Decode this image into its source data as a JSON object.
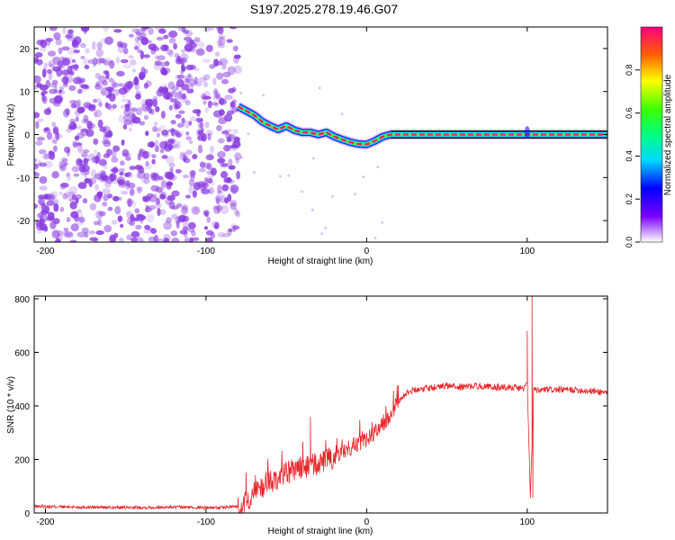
{
  "figure_title": "S197.2025.278.19.46.G07",
  "colors": {
    "spectrum_line": "#e8262b",
    "snr_line": "#e8262b",
    "blob": "#8a3ce0"
  },
  "chart_data": [
    {
      "type": "heatmap",
      "title": "S197.2025.278.19.46.G07",
      "xlabel": "Height of straight line (km)",
      "ylabel": "Frequency (Hz)",
      "xlim": [
        -207,
        150
      ],
      "ylim": [
        -25,
        25
      ],
      "xticks": [
        -200,
        -100,
        0,
        100
      ],
      "yticks": [
        20,
        10,
        0,
        -10,
        -20
      ],
      "noise_region_x": [
        -207,
        -80
      ],
      "signal_track": {
        "x": [
          -80,
          -75,
          -70,
          -65,
          -60,
          -55,
          -50,
          -45,
          -40,
          -35,
          -30,
          -25,
          -20,
          -15,
          -10,
          -5,
          0,
          5,
          10,
          15,
          20,
          30,
          40,
          60,
          80,
          100,
          120,
          150
        ],
        "freq": [
          6.5,
          5.5,
          4.5,
          3.0,
          2.0,
          1.2,
          2.0,
          1.0,
          0.5,
          0.5,
          0,
          0.5,
          -0.5,
          -1.2,
          -1.8,
          -2.2,
          -2.3,
          -1.5,
          -0.5,
          0,
          0,
          0,
          0,
          0,
          0,
          0,
          0,
          0
        ]
      },
      "colorbar": {
        "label": "Normalized spectral amplitude",
        "ticks": [
          "0.0",
          "0.2",
          "0.4",
          "0.6",
          "0.8"
        ],
        "range": [
          0,
          1
        ]
      }
    },
    {
      "type": "line",
      "xlabel": "Height of straight line (km)",
      "ylabel": "SNR (10 * v/v)",
      "xlim": [
        -207,
        150
      ],
      "ylim": [
        0,
        810
      ],
      "xticks": [
        -200,
        -100,
        0,
        100
      ],
      "yticks": [
        0,
        200,
        400,
        600,
        800
      ],
      "series": [
        {
          "name": "SNR",
          "x": [
            -207,
            -180,
            -150,
            -120,
            -90,
            -80,
            -75,
            -70,
            -65,
            -60,
            -55,
            -50,
            -45,
            -40,
            -35,
            -30,
            -25,
            -20,
            -15,
            -10,
            -5,
            0,
            5,
            10,
            15,
            20,
            25,
            30,
            40,
            50,
            60,
            70,
            80,
            90,
            98,
            100,
            102,
            104,
            106,
            110,
            120,
            130,
            140,
            150
          ],
          "values": [
            25,
            22,
            20,
            22,
            20,
            25,
            40,
            80,
            100,
            120,
            130,
            150,
            160,
            170,
            175,
            185,
            195,
            210,
            230,
            245,
            260,
            275,
            300,
            330,
            370,
            420,
            450,
            460,
            470,
            475,
            470,
            475,
            470,
            470,
            465,
            480,
            60,
            460,
            455,
            460,
            460,
            460,
            455,
            450
          ]
        }
      ],
      "spikes": [
        {
          "x": -35,
          "value": 360
        },
        {
          "x": 100,
          "value": 680
        },
        {
          "x": 103,
          "value": 810
        },
        {
          "x": 103.5,
          "value": 55
        }
      ]
    }
  ]
}
